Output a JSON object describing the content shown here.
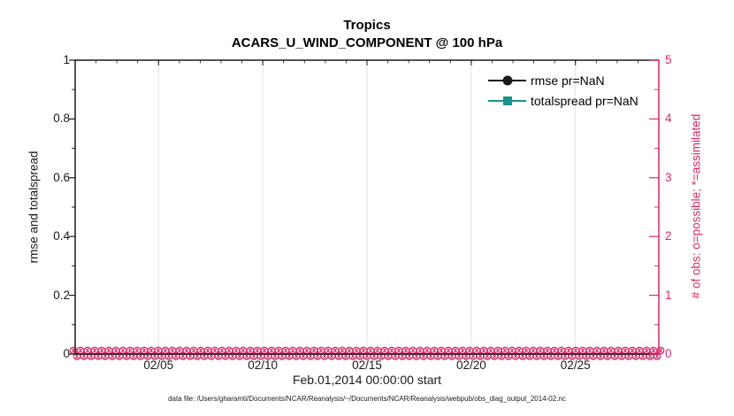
{
  "colors": {
    "ink": "#1a1a1a",
    "pink": "#d9296a",
    "teal": "#17948c",
    "grid": "#e3e3e3"
  },
  "title": {
    "line1": "Tropics",
    "line2": "ACARS_U_WIND_COMPONENT @ 100 hPa"
  },
  "legend": {
    "items": [
      {
        "label": "rmse pr=NaN",
        "marker": "filled-circle",
        "color": "#1a1a1a"
      },
      {
        "label": "totalspread pr=NaN",
        "marker": "filled-square",
        "color": "#17948c"
      }
    ]
  },
  "left_axis": {
    "label": "rmse and totalspread",
    "ticks": [
      "1",
      "0.8",
      "0.6",
      "0.4",
      "0.2",
      "0"
    ],
    "tick_values": [
      1,
      0.8,
      0.6,
      0.4,
      0.2,
      0
    ],
    "minor_tick_values": [
      0.9,
      0.7,
      0.5,
      0.3,
      0.1
    ],
    "range": [
      0,
      1
    ]
  },
  "right_axis": {
    "label": "# of obs: o=possible; *=assimilated",
    "ticks": [
      "5",
      "4",
      "3",
      "2",
      "1",
      "0"
    ],
    "tick_values": [
      5,
      4,
      3,
      2,
      1,
      0
    ],
    "minor_tick_values": [
      4.5,
      3.5,
      2.5,
      1.5,
      0.5
    ],
    "range": [
      0,
      5
    ]
  },
  "x_axis": {
    "label": "Feb.01,2014 00:00:00 start",
    "tick_labels": [
      "02/05",
      "02/10",
      "02/15",
      "02/20",
      "02/25"
    ],
    "tick_days": [
      5,
      10,
      15,
      20,
      25
    ],
    "range_days": 28
  },
  "footer": {
    "text": "data file: /Users/gharamti/Documents/NCAR/Reanalysis/~/Documents/NCAR/Reanalysis/webpub/obs_diag_output_2014-02.nc"
  },
  "chart_data": {
    "type": "line",
    "title": "Tropics",
    "subtitle": "ACARS_U_WIND_COMPONENT @ 100 hPa",
    "xlabel": "Feb.01,2014 00:00:00 start",
    "ylabel_left": "rmse and totalspread",
    "ylabel_right": "# of obs: o=possible; *=assimilated",
    "x_range": [
      "2014-02-01 00:00",
      "2014-03-01 00:00"
    ],
    "x_tick_labels": [
      "02/05",
      "02/10",
      "02/15",
      "02/20",
      "02/25"
    ],
    "ylim_left": [
      0,
      1
    ],
    "ylim_right": [
      0,
      5
    ],
    "grid": "vertical-x-gridlines-only",
    "legend_position": "top-right-inside, no box",
    "series": [
      {
        "name": "rmse pr=NaN",
        "axis": "left",
        "color": "#1a1a1a",
        "marker": "filled-circle",
        "values": "all NaN (nothing plotted)"
      },
      {
        "name": "totalspread pr=NaN",
        "axis": "left",
        "color": "#17948c",
        "marker": "filled-square",
        "values": "all NaN (nothing plotted)"
      },
      {
        "name": "# of obs possible (o markers)",
        "axis": "right",
        "color": "#d9296a",
        "marker": "open-circle",
        "value_at_every_time": 0,
        "times": "dense regular intervals Feb 01 through Feb 28, 2014"
      },
      {
        "name": "# of obs assimilated (* markers)",
        "axis": "right",
        "color": "#d9296a",
        "marker": "asterisk",
        "value_at_every_time": 0,
        "times": "dense regular intervals Feb 01 through Feb 28, 2014"
      }
    ]
  }
}
